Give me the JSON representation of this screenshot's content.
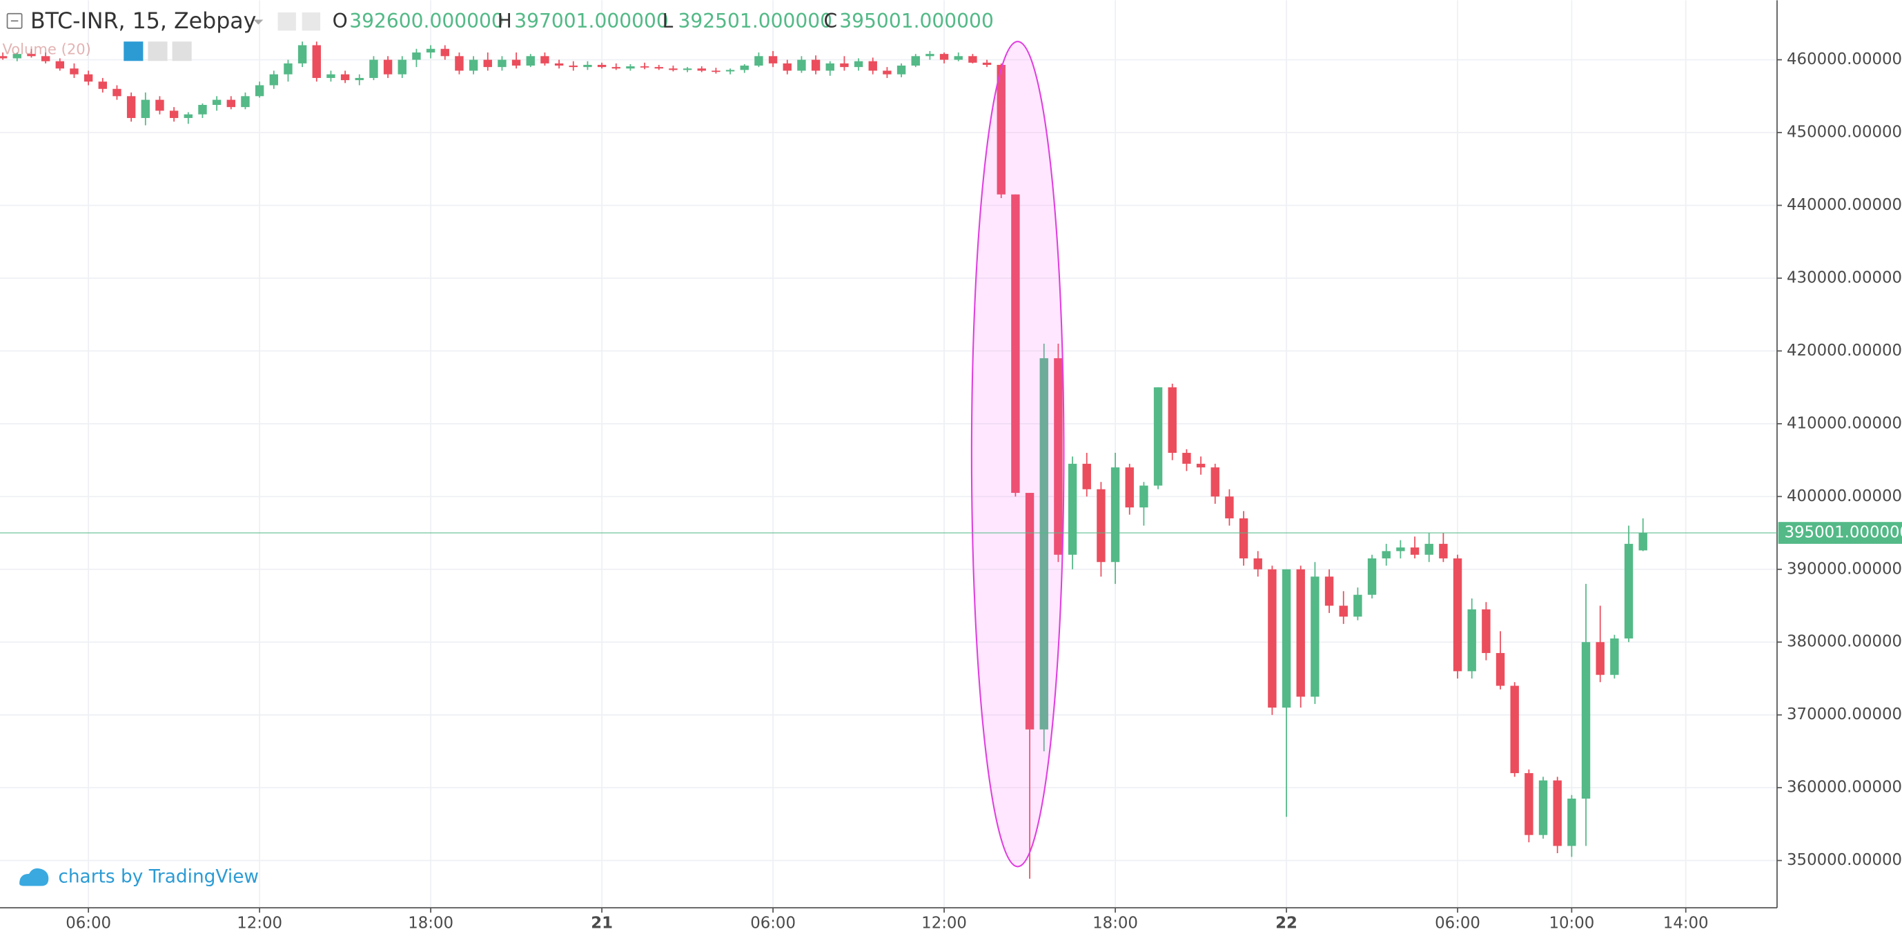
{
  "chart_data": {
    "type": "candlestick",
    "symbol": "BTC-INR, 15, Zebpay",
    "ohlc_header": [
      {
        "key": "O",
        "value": "392600.000000"
      },
      {
        "key": "H",
        "value": "397001.000000"
      },
      {
        "key": "L",
        "value": "392501.000000"
      },
      {
        "key": "C",
        "value": "395001.000000"
      }
    ],
    "volume_label": "Volume (20)",
    "watermark": "charts by TradingView",
    "up_color": "#53b987",
    "down_color": "#eb4d5c",
    "grid": true,
    "last_price": {
      "value": 395001,
      "label": "395001.000000"
    },
    "xlim": [
      2.9,
      65.2
    ],
    "xticks": [
      {
        "value": 6,
        "label": "06:00"
      },
      {
        "value": 12,
        "label": "12:00"
      },
      {
        "value": 18,
        "label": "18:00"
      },
      {
        "value": 24,
        "label": "21"
      },
      {
        "value": 30,
        "label": "06:00"
      },
      {
        "value": 36,
        "label": "12:00"
      },
      {
        "value": 42,
        "label": "18:00"
      },
      {
        "value": 48,
        "label": "22"
      },
      {
        "value": 54,
        "label": "06:00"
      },
      {
        "value": 58,
        "label": "10:00"
      },
      {
        "value": 62,
        "label": "14:00"
      }
    ],
    "ylim": [
      343500,
      468170
    ],
    "yticks": [
      {
        "value": 350000,
        "label": "350000.000000"
      },
      {
        "value": 360000,
        "label": "360000.000000"
      },
      {
        "value": 370000,
        "label": "370000.000000"
      },
      {
        "value": 380000,
        "label": "380000.000000"
      },
      {
        "value": 390000,
        "label": "390000.000000"
      },
      {
        "value": 400000,
        "label": "400000.000000"
      },
      {
        "value": 410000,
        "label": "410000.000000"
      },
      {
        "value": 420000,
        "label": "420000.000000"
      },
      {
        "value": 430000,
        "label": "430000.000000"
      },
      {
        "value": 440000,
        "label": "440000.000000"
      },
      {
        "value": 450000,
        "label": "450000.000000"
      },
      {
        "value": 460000,
        "label": "460000.000000"
      }
    ],
    "x": [
      3,
      3.5,
      4,
      4.5,
      5,
      5.5,
      6,
      6.5,
      7,
      7.5,
      8,
      8.5,
      9,
      9.5,
      10,
      10.5,
      11,
      11.5,
      12,
      12.5,
      13,
      13.5,
      14,
      14.5,
      15,
      15.5,
      16,
      16.5,
      17,
      17.5,
      18,
      18.5,
      19,
      19.5,
      20,
      20.5,
      21,
      21.5,
      22,
      22.5,
      23,
      23.5,
      24,
      24.5,
      25,
      25.5,
      26,
      26.5,
      27,
      27.5,
      28,
      28.5,
      29,
      29.5,
      30,
      30.5,
      31,
      31.5,
      32,
      32.5,
      33,
      33.5,
      34,
      34.5,
      35,
      35.5,
      36,
      36.5,
      37,
      37.5,
      38,
      38.5,
      39,
      39.5,
      40,
      40.5,
      41,
      41.5,
      42,
      42.5,
      43,
      43.5,
      44,
      44.5,
      45,
      45.5,
      46,
      46.5,
      47,
      47.5,
      48,
      48.5,
      49,
      49.5,
      50,
      50.5,
      51,
      51.5,
      52,
      52.5,
      53,
      53.5,
      54,
      54.5,
      55,
      55.5,
      56,
      56.5,
      57,
      57.5,
      58,
      58.5,
      59,
      59.5,
      60,
      60.5
    ],
    "open": [
      460500,
      460200,
      460800,
      460500,
      459800,
      458800,
      458000,
      457000,
      456000,
      455000,
      452000,
      454500,
      453000,
      452000,
      452500,
      453800,
      454500,
      453500,
      455000,
      456500,
      458000,
      459500,
      462000,
      457500,
      458000,
      457200,
      457500,
      460000,
      458000,
      460000,
      461000,
      461500,
      460500,
      458500,
      460000,
      459000,
      460000,
      459200,
      460500,
      459500,
      459200,
      459000,
      459300,
      459000,
      458800,
      459100,
      459000,
      458800,
      458600,
      458800,
      458500,
      458400,
      458600,
      459200,
      460500,
      459500,
      458500,
      460000,
      458500,
      459500,
      459000,
      459800,
      458500,
      458000,
      459200,
      460500,
      460800,
      460000,
      460500,
      459600,
      459300,
      441500,
      400500,
      368000,
      419000,
      392000,
      404500,
      401000,
      391000,
      404000,
      398500,
      401500,
      415000,
      406000,
      404500,
      404000,
      400000,
      397000,
      391500,
      390000,
      371000,
      390000,
      372500,
      389000,
      385000,
      383500,
      386500,
      391500,
      392500,
      393000,
      392000,
      393500,
      391500,
      376000,
      384500,
      378500,
      374000,
      362000,
      353500,
      361000,
      352000,
      358500,
      380000,
      375500,
      380500,
      392600
    ],
    "high": [
      461000,
      461000,
      461500,
      461000,
      460200,
      459500,
      458500,
      457500,
      456500,
      455500,
      455500,
      455000,
      453500,
      452800,
      454000,
      455000,
      455000,
      455500,
      457000,
      458500,
      460000,
      462500,
      462500,
      458500,
      458500,
      458000,
      460500,
      460500,
      460500,
      461500,
      462000,
      462000,
      461000,
      460500,
      461000,
      460500,
      461000,
      460800,
      461000,
      460000,
      459800,
      459800,
      459600,
      459500,
      459400,
      459600,
      459300,
      459200,
      459000,
      459100,
      458900,
      458800,
      459400,
      461000,
      461200,
      460000,
      460500,
      460600,
      459800,
      460500,
      460200,
      460300,
      459000,
      459500,
      460800,
      461200,
      461000,
      461000,
      460800,
      460000,
      459500,
      441500,
      400500,
      421000,
      421000,
      405500,
      406000,
      402000,
      406000,
      404500,
      402000,
      415000,
      415500,
      406500,
      405500,
      404500,
      401000,
      398000,
      392500,
      390500,
      390000,
      390500,
      391000,
      390000,
      387000,
      387500,
      392000,
      393500,
      394000,
      394500,
      395000,
      395000,
      392000,
      386000,
      385500,
      381500,
      374500,
      362500,
      361500,
      361500,
      359000,
      388000,
      385000,
      381000,
      396000,
      397001
    ],
    "low": [
      460000,
      459800,
      460300,
      459500,
      458500,
      457500,
      456500,
      455500,
      454500,
      451500,
      451000,
      452500,
      451500,
      451200,
      452000,
      453000,
      453200,
      453200,
      454800,
      456000,
      457000,
      459000,
      457000,
      457000,
      456800,
      456500,
      457200,
      457500,
      457500,
      459000,
      460200,
      460000,
      458000,
      458000,
      458500,
      458500,
      458800,
      459000,
      459200,
      458800,
      458500,
      458600,
      458800,
      458600,
      458500,
      458700,
      458600,
      458400,
      458300,
      458300,
      458100,
      458000,
      458200,
      459000,
      459000,
      458000,
      458200,
      458000,
      457800,
      458500,
      458500,
      458000,
      457500,
      457600,
      459000,
      460000,
      459500,
      459800,
      459500,
      459000,
      441000,
      400000,
      347500,
      365000,
      391000,
      390000,
      400000,
      389000,
      388000,
      397500,
      396000,
      401000,
      405000,
      403500,
      403000,
      399000,
      396000,
      390500,
      389000,
      370000,
      356000,
      371000,
      371500,
      384000,
      382500,
      383000,
      386000,
      390500,
      391500,
      391500,
      391000,
      391000,
      375000,
      375000,
      377500,
      373500,
      361500,
      352500,
      353000,
      351000,
      350500,
      352000,
      374500,
      375000,
      380000,
      392501
    ],
    "close": [
      460200,
      460800,
      460500,
      459800,
      458800,
      458000,
      457000,
      456000,
      455000,
      452000,
      454500,
      453000,
      452000,
      452500,
      453800,
      454500,
      453500,
      455000,
      456500,
      458000,
      459500,
      462000,
      457500,
      458000,
      457200,
      457500,
      460000,
      458000,
      460000,
      461000,
      461500,
      460500,
      458500,
      460000,
      459000,
      460000,
      459200,
      460500,
      459500,
      459200,
      459000,
      459300,
      459000,
      458800,
      459100,
      459000,
      458800,
      458600,
      458800,
      458500,
      458400,
      458600,
      459200,
      460500,
      459500,
      458500,
      460000,
      458500,
      459500,
      459000,
      459800,
      458500,
      458000,
      459200,
      460500,
      460800,
      460000,
      460500,
      459600,
      459300,
      441500,
      400500,
      368000,
      419000,
      392000,
      404500,
      401000,
      391000,
      404000,
      398500,
      401500,
      415000,
      406000,
      404500,
      404000,
      400000,
      397000,
      391500,
      390000,
      371000,
      390000,
      372500,
      389000,
      385000,
      383500,
      386500,
      391500,
      392500,
      393000,
      392000,
      393500,
      391500,
      376000,
      384500,
      378500,
      374000,
      362000,
      353500,
      361000,
      352000,
      358500,
      380000,
      375500,
      380500,
      393500,
      395001
    ]
  }
}
